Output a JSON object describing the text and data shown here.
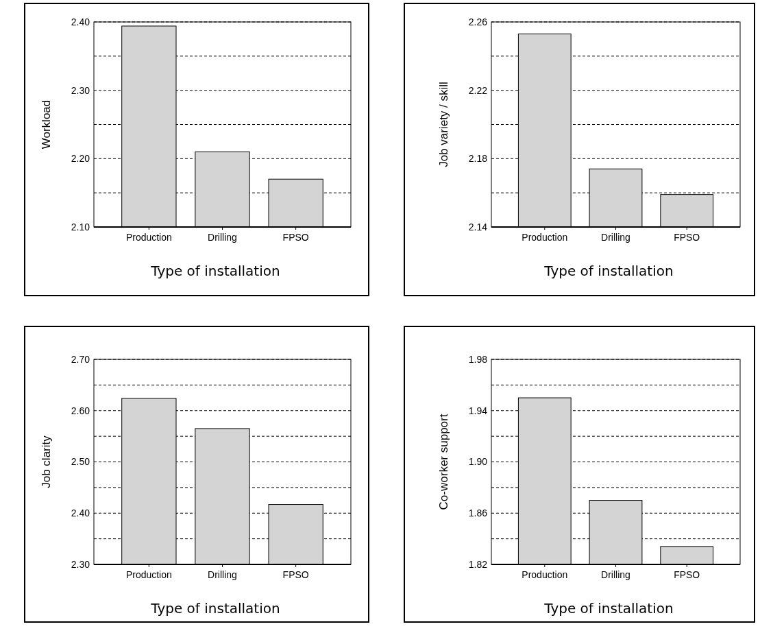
{
  "chart_data": [
    {
      "type": "bar",
      "xlabel": "Type of installation",
      "ylabel": "Workload",
      "categories": [
        "Production",
        "Drilling",
        "FPSO"
      ],
      "values": [
        2.394,
        2.21,
        2.17
      ],
      "color": "#d4d4d4",
      "ylim": [
        2.1,
        2.4
      ],
      "yticks": [
        {
          "value": 2.1,
          "label": "2.10"
        },
        {
          "value": 2.15,
          "label": null
        },
        {
          "value": 2.2,
          "label": "2.20"
        },
        {
          "value": 2.25,
          "label": null
        },
        {
          "value": 2.3,
          "label": "2.30"
        },
        {
          "value": 2.35,
          "label": null
        },
        {
          "value": 2.4,
          "label": "2.40"
        }
      ],
      "grid": "y",
      "line_style": "dashed"
    },
    {
      "type": "bar",
      "xlabel": "Type of installation",
      "ylabel": "Job variety / skill",
      "categories": [
        "Production",
        "Drilling",
        "FPSO"
      ],
      "values": [
        2.253,
        2.174,
        2.159
      ],
      "color": "#d4d4d4",
      "ylim": [
        2.14,
        2.26
      ],
      "yticks": [
        2.14,
        {
          "value": 2.16,
          "label": null
        },
        2.18,
        {
          "value": 2.2,
          "label": null
        },
        2.22,
        {
          "value": 2.24,
          "label": null
        },
        2.26
      ],
      "grid": "y",
      "line_style": "dashed"
    },
    {
      "type": "bar",
      "xlabel": "Type of installation",
      "ylabel": "Job clarity",
      "categories": [
        "Production",
        "Drilling",
        "FPSO"
      ],
      "values": [
        2.624,
        2.565,
        2.417
      ],
      "color": "#d4d4d4",
      "ylim": [
        2.3,
        2.7
      ],
      "yticks": [
        {
          "value": 2.3,
          "label": "2.30"
        },
        {
          "value": 2.35,
          "label": null
        },
        {
          "value": 2.4,
          "label": "2.40"
        },
        {
          "value": 2.45,
          "label": null
        },
        {
          "value": 2.5,
          "label": "2.50"
        },
        {
          "value": 2.55,
          "label": null
        },
        {
          "value": 2.6,
          "label": "2.60"
        },
        {
          "value": 2.65,
          "label": null
        },
        {
          "value": 2.7,
          "label": "2.70"
        }
      ],
      "grid": "y",
      "line_style": "dashed"
    },
    {
      "type": "bar",
      "xlabel": "Type of installation",
      "ylabel": "Co-worker support",
      "categories": [
        "Production",
        "Drilling",
        "FPSO"
      ],
      "values": [
        1.95,
        1.87,
        1.834
      ],
      "color": "#d4d4d4",
      "ylim": [
        1.82,
        1.98
      ],
      "yticks": [
        1.82,
        {
          "value": 1.84,
          "label": null
        },
        1.86,
        {
          "value": 1.88,
          "label": null
        },
        {
          "value": 1.9,
          "label": "1.90"
        },
        {
          "value": 1.92,
          "label": null
        },
        1.94,
        {
          "value": 1.96,
          "label": null
        },
        1.98
      ],
      "grid": "y",
      "line_style": "dashed"
    }
  ]
}
